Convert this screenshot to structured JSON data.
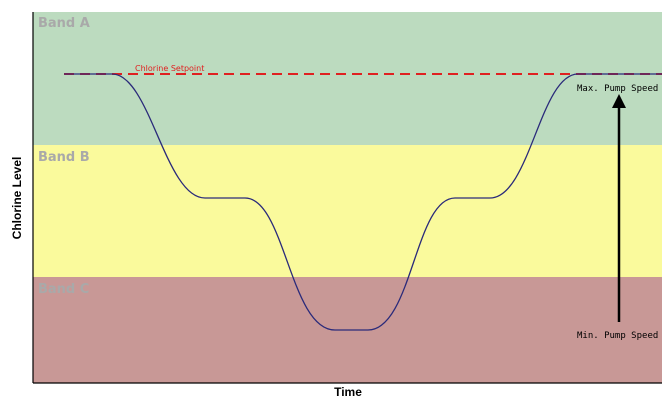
{
  "diagram": {
    "bands": [
      {
        "id": "band-a",
        "label": "Band A",
        "fill": "#bcdbbf"
      },
      {
        "id": "band-b",
        "label": "Band B",
        "fill": "#fafa9c"
      },
      {
        "id": "band-c",
        "label": "Band C",
        "fill": "#c89896"
      }
    ],
    "band_label_color": "#a9a9a9",
    "setpoint": {
      "label": "Chlorine Setpoint",
      "color": "#e02020"
    },
    "curve_color": "#2a2a7a",
    "y_axis_title": "Chlorine Level",
    "x_axis_title": "Time",
    "max_pump_speed_label": "Max. Pump Speed",
    "min_pump_speed_label": "Min. Pump Speed"
  }
}
